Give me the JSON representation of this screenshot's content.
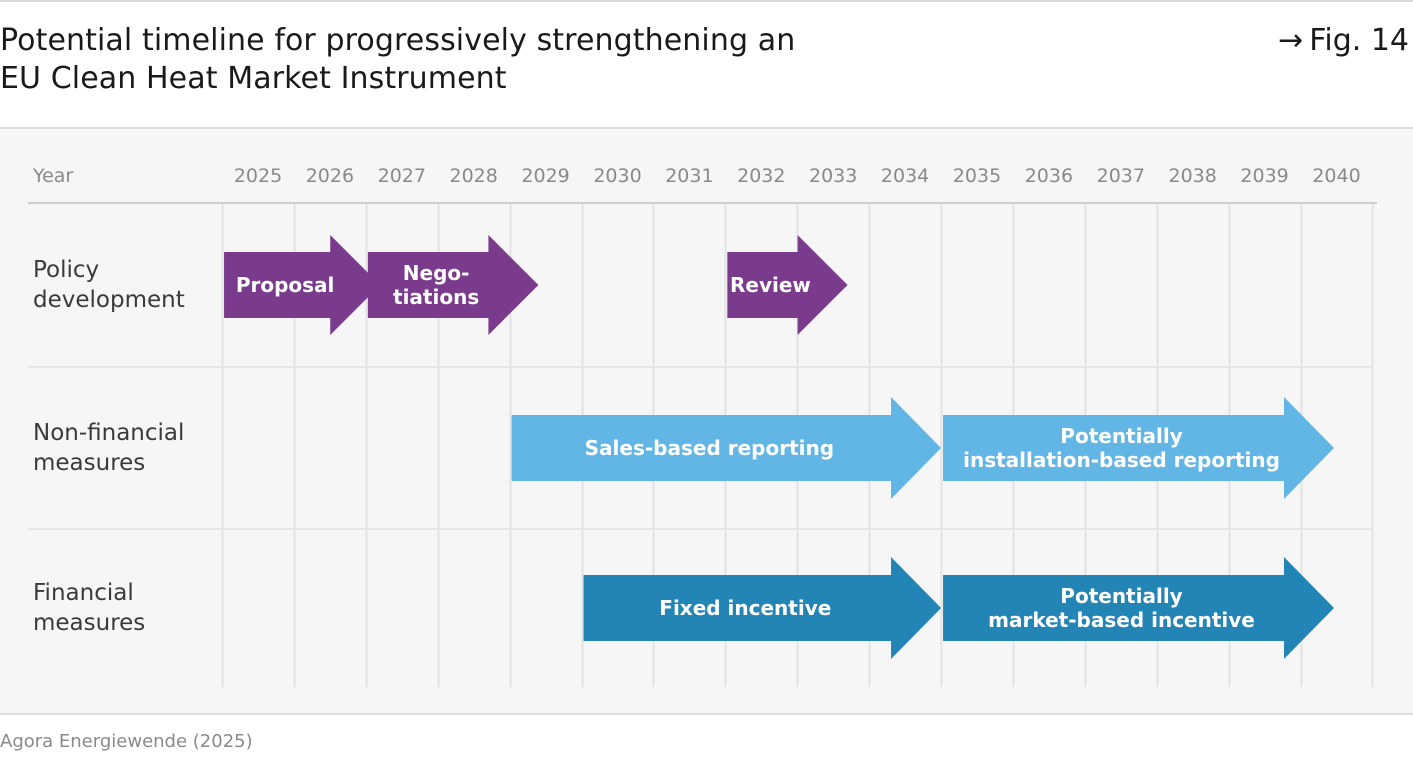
{
  "header": {
    "title_line1": "Potential timeline for progressively strengthening an",
    "title_line2": "EU Clean Heat Market Instrument",
    "figure_ref": "Fig. 14",
    "figure_arrow": "→"
  },
  "chart_data": {
    "type": "timeline",
    "year_header": "Year",
    "years": [
      "2025",
      "2026",
      "2027",
      "2028",
      "2029",
      "2030",
      "2031",
      "2032",
      "2033",
      "2034",
      "2035",
      "2036",
      "2037",
      "2038",
      "2039",
      "2040"
    ],
    "rows": [
      {
        "label_line1": "Policy",
        "label_line2": "development"
      },
      {
        "label_line1": "Non-financial",
        "label_line2": "measures"
      },
      {
        "label_line1": "Financial",
        "label_line2": "measures"
      }
    ],
    "phases": [
      {
        "row": 0,
        "label_line1": "Proposal",
        "label_line2": "",
        "start": 2025,
        "end": 2026.7,
        "color": "#7b3b8c"
      },
      {
        "row": 0,
        "label_line1": "Nego-",
        "label_line2": "tiations",
        "start": 2027,
        "end": 2028.9,
        "color": "#7b3b8c"
      },
      {
        "row": 0,
        "label_line1": "Review",
        "label_line2": "",
        "start": 2032,
        "end": 2033.2,
        "color": "#7b3b8c"
      },
      {
        "row": 1,
        "label_line1": "Sales-based reporting",
        "label_line2": "",
        "start": 2029,
        "end": 2034.5,
        "color": "#62b6e6"
      },
      {
        "row": 1,
        "label_line1": "Potentially",
        "label_line2": "installation-based reporting",
        "start": 2035,
        "end": 2040,
        "color": "#62b6e6"
      },
      {
        "row": 2,
        "label_line1": "Fixed incentive",
        "label_line2": "",
        "start": 2030,
        "end": 2034.5,
        "color": "#2384b6"
      },
      {
        "row": 2,
        "label_line1": "Potentially",
        "label_line2": "market-based incentive",
        "start": 2035,
        "end": 2040,
        "color": "#2384b6"
      }
    ]
  },
  "footer": {
    "source": "Agora Energiewende (2025)"
  }
}
